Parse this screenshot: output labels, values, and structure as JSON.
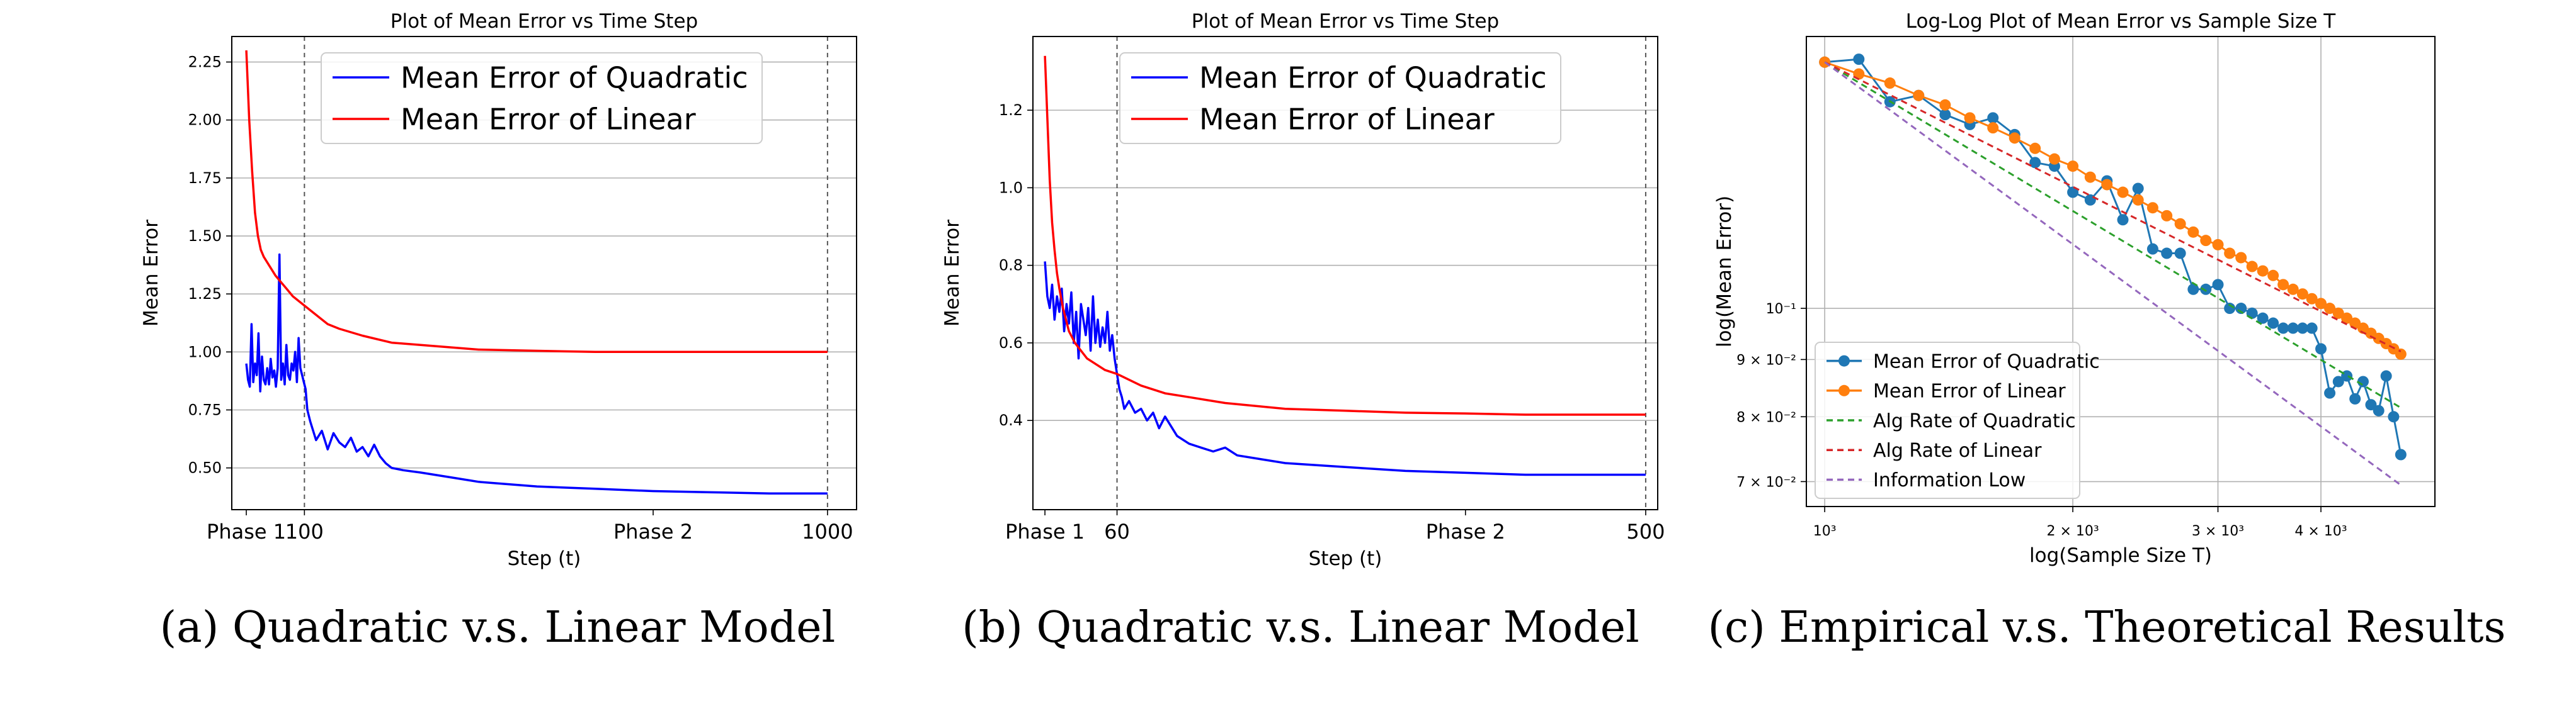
{
  "colors": {
    "quadratic_a": "#0000ff",
    "linear_a": "#ff0000",
    "quadratic_c": "#1f77b4",
    "linear_c": "#ff7f0e",
    "alg_quadratic": "#2ca02c",
    "alg_linear": "#d62728",
    "info_low": "#9467bd",
    "grid": "#b0b0b0"
  },
  "chart_data": [
    {
      "type": "line",
      "title": "Plot of Mean Error vs Time Step",
      "xlabel": "Step (t)",
      "ylabel": "Mean Error",
      "xlim": [
        -25,
        1050
      ],
      "ylim": [
        0.32,
        2.36
      ],
      "yticks": [
        0.5,
        0.75,
        1.0,
        1.25,
        1.5,
        1.75,
        2.0,
        2.25
      ],
      "ytick_labels": [
        "0.50",
        "0.75",
        "1.00",
        "1.25",
        "1.50",
        "1.75",
        "2.00",
        "2.25"
      ],
      "xticks": [
        0,
        100,
        700,
        1000
      ],
      "xtick_labels": [
        "Phase 1",
        "100",
        "Phase 2",
        "1000"
      ],
      "vlines": [
        100,
        1000
      ],
      "grid": true,
      "legend": "top-center",
      "caption": "(a)  Quadratic v.s. Linear Model",
      "series": [
        {
          "name": "Mean Error of Quadratic",
          "color_key": "quadratic_a",
          "x": [
            0,
            3,
            6,
            9,
            12,
            15,
            18,
            21,
            24,
            27,
            30,
            33,
            36,
            39,
            42,
            45,
            48,
            51,
            54,
            57,
            60,
            63,
            66,
            69,
            72,
            75,
            78,
            81,
            84,
            87,
            90,
            93,
            96,
            99,
            102,
            105,
            110,
            120,
            130,
            140,
            150,
            160,
            170,
            180,
            190,
            200,
            210,
            220,
            230,
            240,
            250,
            270,
            300,
            350,
            400,
            450,
            500,
            600,
            700,
            800,
            900,
            1000
          ],
          "y": [
            0.95,
            0.88,
            0.85,
            1.12,
            0.87,
            0.95,
            0.9,
            1.08,
            0.83,
            0.98,
            0.88,
            0.86,
            0.93,
            0.86,
            0.97,
            0.89,
            0.92,
            0.85,
            0.93,
            1.42,
            0.88,
            0.95,
            0.86,
            1.03,
            0.9,
            0.88,
            0.95,
            0.92,
            1.0,
            0.87,
            1.06,
            0.93,
            0.9,
            0.87,
            0.84,
            0.75,
            0.7,
            0.62,
            0.66,
            0.58,
            0.65,
            0.61,
            0.59,
            0.63,
            0.57,
            0.59,
            0.55,
            0.6,
            0.55,
            0.52,
            0.5,
            0.49,
            0.48,
            0.46,
            0.44,
            0.43,
            0.42,
            0.41,
            0.4,
            0.395,
            0.39,
            0.39
          ]
        },
        {
          "name": "Mean Error of Linear",
          "color_key": "linear_a",
          "x": [
            0,
            5,
            10,
            15,
            20,
            25,
            30,
            40,
            50,
            60,
            70,
            80,
            90,
            100,
            120,
            140,
            160,
            200,
            250,
            300,
            400,
            500,
            600,
            700,
            800,
            900,
            1000
          ],
          "y": [
            2.3,
            2.0,
            1.78,
            1.6,
            1.5,
            1.44,
            1.41,
            1.37,
            1.33,
            1.3,
            1.27,
            1.24,
            1.22,
            1.2,
            1.16,
            1.12,
            1.1,
            1.07,
            1.04,
            1.03,
            1.01,
            1.005,
            1.0,
            1.0,
            1.0,
            1.0,
            1.0
          ]
        }
      ]
    },
    {
      "type": "line",
      "title": "Plot of Mean Error vs Time Step",
      "xlabel": "Step (t)",
      "ylabel": "Mean Error",
      "xlim": [
        -10,
        510
      ],
      "ylim": [
        0.17,
        1.39
      ],
      "yticks": [
        0.4,
        0.6,
        0.8,
        1.0,
        1.2
      ],
      "ytick_labels": [
        "0.4",
        "0.6",
        "0.8",
        "1.0",
        "1.2"
      ],
      "xticks": [
        0,
        60,
        350,
        500
      ],
      "xtick_labels": [
        "Phase 1",
        "60",
        "Phase 2",
        "500"
      ],
      "vlines": [
        60,
        500
      ],
      "grid": true,
      "legend": "top-center",
      "caption": "(b)  Quadratic v.s. Linear Model",
      "series": [
        {
          "name": "Mean Error of Quadratic",
          "color_key": "quadratic_a",
          "x": [
            0,
            2,
            4,
            6,
            8,
            10,
            12,
            14,
            16,
            18,
            20,
            22,
            24,
            26,
            28,
            30,
            32,
            34,
            36,
            38,
            40,
            42,
            44,
            46,
            48,
            50,
            52,
            54,
            56,
            58,
            60,
            62,
            64,
            66,
            70,
            75,
            80,
            85,
            90,
            95,
            100,
            110,
            120,
            130,
            140,
            150,
            160,
            180,
            200,
            250,
            300,
            350,
            400,
            450,
            500
          ],
          "y": [
            0.81,
            0.72,
            0.69,
            0.75,
            0.66,
            0.72,
            0.68,
            0.74,
            0.63,
            0.7,
            0.65,
            0.73,
            0.6,
            0.68,
            0.56,
            0.7,
            0.66,
            0.62,
            0.69,
            0.58,
            0.72,
            0.6,
            0.66,
            0.59,
            0.64,
            0.6,
            0.68,
            0.58,
            0.62,
            0.56,
            0.52,
            0.48,
            0.46,
            0.43,
            0.45,
            0.42,
            0.43,
            0.4,
            0.42,
            0.38,
            0.41,
            0.36,
            0.34,
            0.33,
            0.32,
            0.33,
            0.31,
            0.3,
            0.29,
            0.28,
            0.27,
            0.265,
            0.26,
            0.26,
            0.26
          ]
        },
        {
          "name": "Mean Error of Linear",
          "color_key": "linear_a",
          "x": [
            0,
            2,
            4,
            6,
            8,
            10,
            12,
            15,
            20,
            25,
            30,
            35,
            40,
            50,
            60,
            80,
            100,
            120,
            150,
            200,
            250,
            300,
            350,
            400,
            450,
            500
          ],
          "y": [
            1.34,
            1.18,
            1.02,
            0.91,
            0.84,
            0.78,
            0.74,
            0.69,
            0.63,
            0.6,
            0.58,
            0.56,
            0.55,
            0.53,
            0.52,
            0.49,
            0.47,
            0.46,
            0.445,
            0.43,
            0.425,
            0.42,
            0.418,
            0.415,
            0.415,
            0.415
          ]
        }
      ]
    },
    {
      "type": "line",
      "title": "Log-Log Plot of Mean Error vs Sample Size T",
      "xlabel": "log(Sample Size T)",
      "ylabel": "log(Mean Error)",
      "xscale": "log",
      "yscale": "log",
      "xlim": [
        950,
        5500
      ],
      "ylim": [
        0.0665,
        0.175
      ],
      "xticks": [
        1000,
        2000,
        3000,
        4000
      ],
      "xtick_labels": [
        "10³",
        "2 × 10³",
        "3 × 10³",
        "4 × 10³"
      ],
      "yticks": [
        0.07,
        0.08,
        0.09,
        0.1
      ],
      "ytick_labels": [
        "7 × 10⁻²",
        "8 × 10⁻²",
        "9 × 10⁻²",
        "10⁻¹"
      ],
      "grid": true,
      "legend": "lower-left",
      "caption": "(c)  Empirical v.s. Theoretical Results",
      "series": [
        {
          "name": "Mean Error of Quadratic",
          "color_key": "quadratic_c",
          "style": "line-marker",
          "x": [
            1000,
            1100,
            1200,
            1300,
            1400,
            1500,
            1600,
            1700,
            1800,
            1900,
            2000,
            2100,
            2200,
            2300,
            2400,
            2500,
            2600,
            2700,
            2800,
            2900,
            3000,
            3100,
            3200,
            3300,
            3400,
            3500,
            3600,
            3700,
            3800,
            3900,
            4000,
            4100,
            4200,
            4300,
            4400,
            4500,
            4600,
            4700,
            4800,
            4900,
            5000
          ],
          "y": [
            0.166,
            0.167,
            0.153,
            0.155,
            0.149,
            0.146,
            0.148,
            0.143,
            0.135,
            0.134,
            0.127,
            0.125,
            0.13,
            0.12,
            0.128,
            0.113,
            0.112,
            0.112,
            0.104,
            0.104,
            0.105,
            0.1,
            0.1,
            0.099,
            0.098,
            0.097,
            0.096,
            0.096,
            0.096,
            0.096,
            0.092,
            0.084,
            0.086,
            0.087,
            0.083,
            0.086,
            0.082,
            0.081,
            0.087,
            0.08,
            0.074
          ]
        },
        {
          "name": "Mean Error of Linear",
          "color_key": "linear_c",
          "style": "line-marker",
          "x": [
            1000,
            1100,
            1200,
            1300,
            1400,
            1500,
            1600,
            1700,
            1800,
            1900,
            2000,
            2100,
            2200,
            2300,
            2400,
            2500,
            2600,
            2700,
            2800,
            2900,
            3000,
            3100,
            3200,
            3300,
            3400,
            3500,
            3600,
            3700,
            3800,
            3900,
            4000,
            4100,
            4200,
            4300,
            4400,
            4500,
            4600,
            4700,
            4800,
            4900,
            5000
          ],
          "y": [
            0.166,
            0.162,
            0.159,
            0.155,
            0.152,
            0.148,
            0.145,
            0.142,
            0.139,
            0.136,
            0.134,
            0.131,
            0.129,
            0.127,
            0.125,
            0.123,
            0.121,
            0.119,
            0.117,
            0.115,
            0.114,
            0.112,
            0.111,
            0.109,
            0.108,
            0.107,
            0.105,
            0.104,
            0.103,
            0.102,
            0.101,
            0.1,
            0.099,
            0.098,
            0.097,
            0.096,
            0.095,
            0.094,
            0.093,
            0.092,
            0.091
          ]
        },
        {
          "name": "Alg Rate of Quadratic",
          "color_key": "alg_quadratic",
          "style": "dashed",
          "x": [
            1000,
            5000
          ],
          "y": [
            0.166,
            0.0815
          ]
        },
        {
          "name": "Alg Rate of Linear",
          "color_key": "alg_linear",
          "style": "dashed",
          "x": [
            1000,
            5000
          ],
          "y": [
            0.166,
            0.0915
          ]
        },
        {
          "name": "Information Low",
          "color_key": "info_low",
          "style": "dashed",
          "x": [
            1000,
            5000
          ],
          "y": [
            0.166,
            0.0695
          ]
        }
      ]
    }
  ]
}
